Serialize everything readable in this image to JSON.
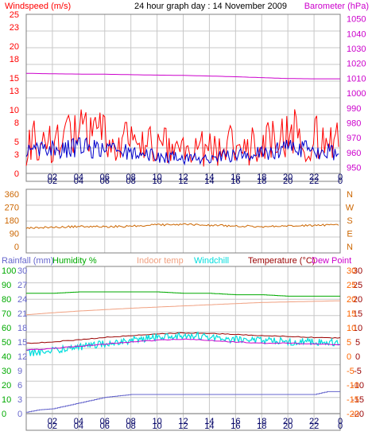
{
  "header": {
    "left_title": "Windspeed (m/s)",
    "center_title": "24 hour graph day : 14 November 2009",
    "right_title": "Barometer (hPa)"
  },
  "colors": {
    "grid": "#c8c8c8",
    "axis": "#808080",
    "windspeed": "#ff0000",
    "windspeed_left_axis": "#ff0000",
    "barometer": "#cc00cc",
    "avg_wind": "#0000cc",
    "direction": "#cc6600",
    "direction_axis": "#cc6600",
    "rainfall": "#6666cc",
    "humidity": "#00aa00",
    "indoor": "#f0a080",
    "windchill": "#00dddd",
    "temperature": "#990000",
    "dewpoint": "#cc00cc",
    "temp_axis": "#ff6600",
    "xaxis_labels": "#000066"
  },
  "chart_data": [
    {
      "type": "line",
      "panel": "wind_barometer",
      "title": "24 hour graph day : 14 November 2009",
      "x_ticks": [
        "02",
        "04",
        "06",
        "08",
        "10",
        "12",
        "14",
        "16",
        "18",
        "20",
        "22",
        "0"
      ],
      "left_axis": {
        "label": "Windspeed (m/s)",
        "ticks": [
          0,
          3,
          5,
          8,
          10,
          13,
          15,
          18,
          20,
          23,
          25
        ],
        "ylim": [
          0,
          25
        ]
      },
      "right_axis": {
        "label": "Barometer (hPa)",
        "ticks": [
          950,
          960,
          970,
          980,
          990,
          1000,
          1010,
          1020,
          1030,
          1040,
          1050
        ],
        "ylim": [
          946,
          1053
        ]
      },
      "series": [
        {
          "name": "Windspeed (m/s)",
          "axis": "left",
          "hours": [
            0,
            2,
            4,
            6,
            8,
            10,
            12,
            14,
            16,
            18,
            20,
            22,
            24
          ],
          "values": [
            3.8,
            4.2,
            4.6,
            4.1,
            3.6,
            3.0,
            2.6,
            2.8,
            3.2,
            3.5,
            4.4,
            4.0,
            3.6
          ]
        },
        {
          "name": "Gust (m/s)",
          "axis": "left",
          "hours": [
            0,
            2,
            4,
            6,
            8,
            10,
            12,
            14,
            16,
            18,
            20,
            22,
            24
          ],
          "values": [
            6.0,
            7.0,
            7.8,
            7.2,
            6.5,
            5.5,
            4.8,
            5.0,
            5.8,
            6.3,
            7.8,
            7.2,
            6.0
          ]
        },
        {
          "name": "Barometer (hPa)",
          "axis": "right",
          "hours": [
            0,
            2,
            4,
            6,
            8,
            10,
            12,
            14,
            16,
            18,
            20,
            22,
            24
          ],
          "values": [
            1013.3,
            1013.0,
            1012.8,
            1012.7,
            1012.4,
            1012.1,
            1011.9,
            1011.5,
            1011.0,
            1010.4,
            1009.8,
            1009.6,
            1009.6
          ]
        }
      ]
    },
    {
      "type": "line",
      "panel": "wind_direction",
      "x_ticks": [
        "02",
        "04",
        "06",
        "08",
        "10",
        "12",
        "14",
        "16",
        "18",
        "20",
        "22",
        "0"
      ],
      "left_axis": {
        "ticks": [
          0,
          90,
          180,
          270,
          360
        ],
        "ylim": [
          0,
          360
        ]
      },
      "right_axis": {
        "ticks": [
          "N",
          "E",
          "S",
          "W",
          "N"
        ]
      },
      "series": [
        {
          "name": "Wind direction",
          "hours": [
            0,
            2,
            4,
            6,
            8,
            10,
            12,
            14,
            16,
            18,
            20,
            22,
            24
          ],
          "values": [
            128,
            132,
            138,
            136,
            140,
            148,
            152,
            146,
            142,
            136,
            140,
            146,
            148
          ]
        }
      ]
    },
    {
      "type": "line",
      "panel": "temperature_humidity",
      "legend": [
        "Rainfall (mm)",
        "Humidity %",
        "Indoor temp",
        "Windchill",
        "Temperature (°C)",
        "Dew Point"
      ],
      "x_ticks": [
        "02",
        "04",
        "06",
        "08",
        "10",
        "12",
        "14",
        "16",
        "18",
        "20",
        "22",
        "0"
      ],
      "humidity_axis": {
        "ticks": [
          0,
          10,
          20,
          30,
          40,
          50,
          60,
          70,
          80,
          90,
          100
        ],
        "ylim": [
          0,
          100
        ]
      },
      "rainfall_axis": {
        "ticks": [
          0,
          3,
          6,
          9,
          12,
          15,
          18,
          21,
          24,
          27,
          30
        ],
        "ylim": [
          0,
          30
        ]
      },
      "temperature_axis": {
        "ticks": [
          -20,
          -15,
          -10,
          -5,
          0,
          5,
          10,
          15,
          20,
          25,
          30
        ],
        "ylim": [
          -20,
          30
        ]
      },
      "series": [
        {
          "name": "Humidity %",
          "axis": "humidity",
          "hours": [
            0,
            2,
            4,
            6,
            8,
            10,
            12,
            14,
            16,
            18,
            20,
            22,
            24
          ],
          "values": [
            84,
            84,
            85,
            85,
            85,
            85,
            84,
            84,
            83,
            83,
            82,
            82,
            82
          ]
        },
        {
          "name": "Indoor temp",
          "axis": "temperature",
          "hours": [
            0,
            2,
            4,
            6,
            8,
            10,
            12,
            14,
            16,
            18,
            20,
            22,
            24
          ],
          "values": [
            14.5,
            15.2,
            15.8,
            16.3,
            16.8,
            17.2,
            17.6,
            18.0,
            18.4,
            18.8,
            19.0,
            19.2,
            19.4
          ]
        },
        {
          "name": "Temperature (°C)",
          "axis": "temperature",
          "hours": [
            0,
            2,
            4,
            6,
            8,
            10,
            12,
            14,
            16,
            18,
            20,
            22,
            24
          ],
          "values": [
            4.5,
            5.0,
            5.8,
            6.6,
            7.2,
            7.8,
            8.2,
            8.0,
            7.6,
            7.2,
            7.0,
            6.6,
            6.4
          ]
        },
        {
          "name": "Windchill",
          "axis": "temperature",
          "hours": [
            0,
            2,
            4,
            6,
            8,
            10,
            12,
            14,
            16,
            18,
            20,
            22,
            24
          ],
          "values": [
            1.0,
            2.0,
            3.2,
            4.5,
            5.5,
            6.8,
            7.4,
            6.8,
            5.8,
            5.4,
            5.2,
            5.0,
            4.8
          ]
        },
        {
          "name": "Dew Point",
          "axis": "temperature",
          "hours": [
            0,
            2,
            4,
            6,
            8,
            10,
            12,
            14,
            16,
            18,
            20,
            22,
            24
          ],
          "values": [
            2.2,
            2.8,
            3.5,
            4.3,
            5.0,
            5.6,
            6.0,
            5.6,
            5.0,
            4.6,
            4.6,
            4.3,
            4.1
          ]
        },
        {
          "name": "Rainfall (mm)",
          "axis": "rainfall",
          "hours": [
            0,
            1,
            2,
            4,
            6,
            8,
            10,
            12,
            14,
            16,
            18,
            20,
            22,
            23,
            24
          ],
          "values": [
            0.3,
            0.8,
            1.0,
            2.2,
            3.4,
            4.0,
            4.0,
            4.0,
            4.0,
            4.0,
            4.0,
            4.0,
            4.0,
            4.6,
            4.6
          ]
        }
      ]
    }
  ]
}
